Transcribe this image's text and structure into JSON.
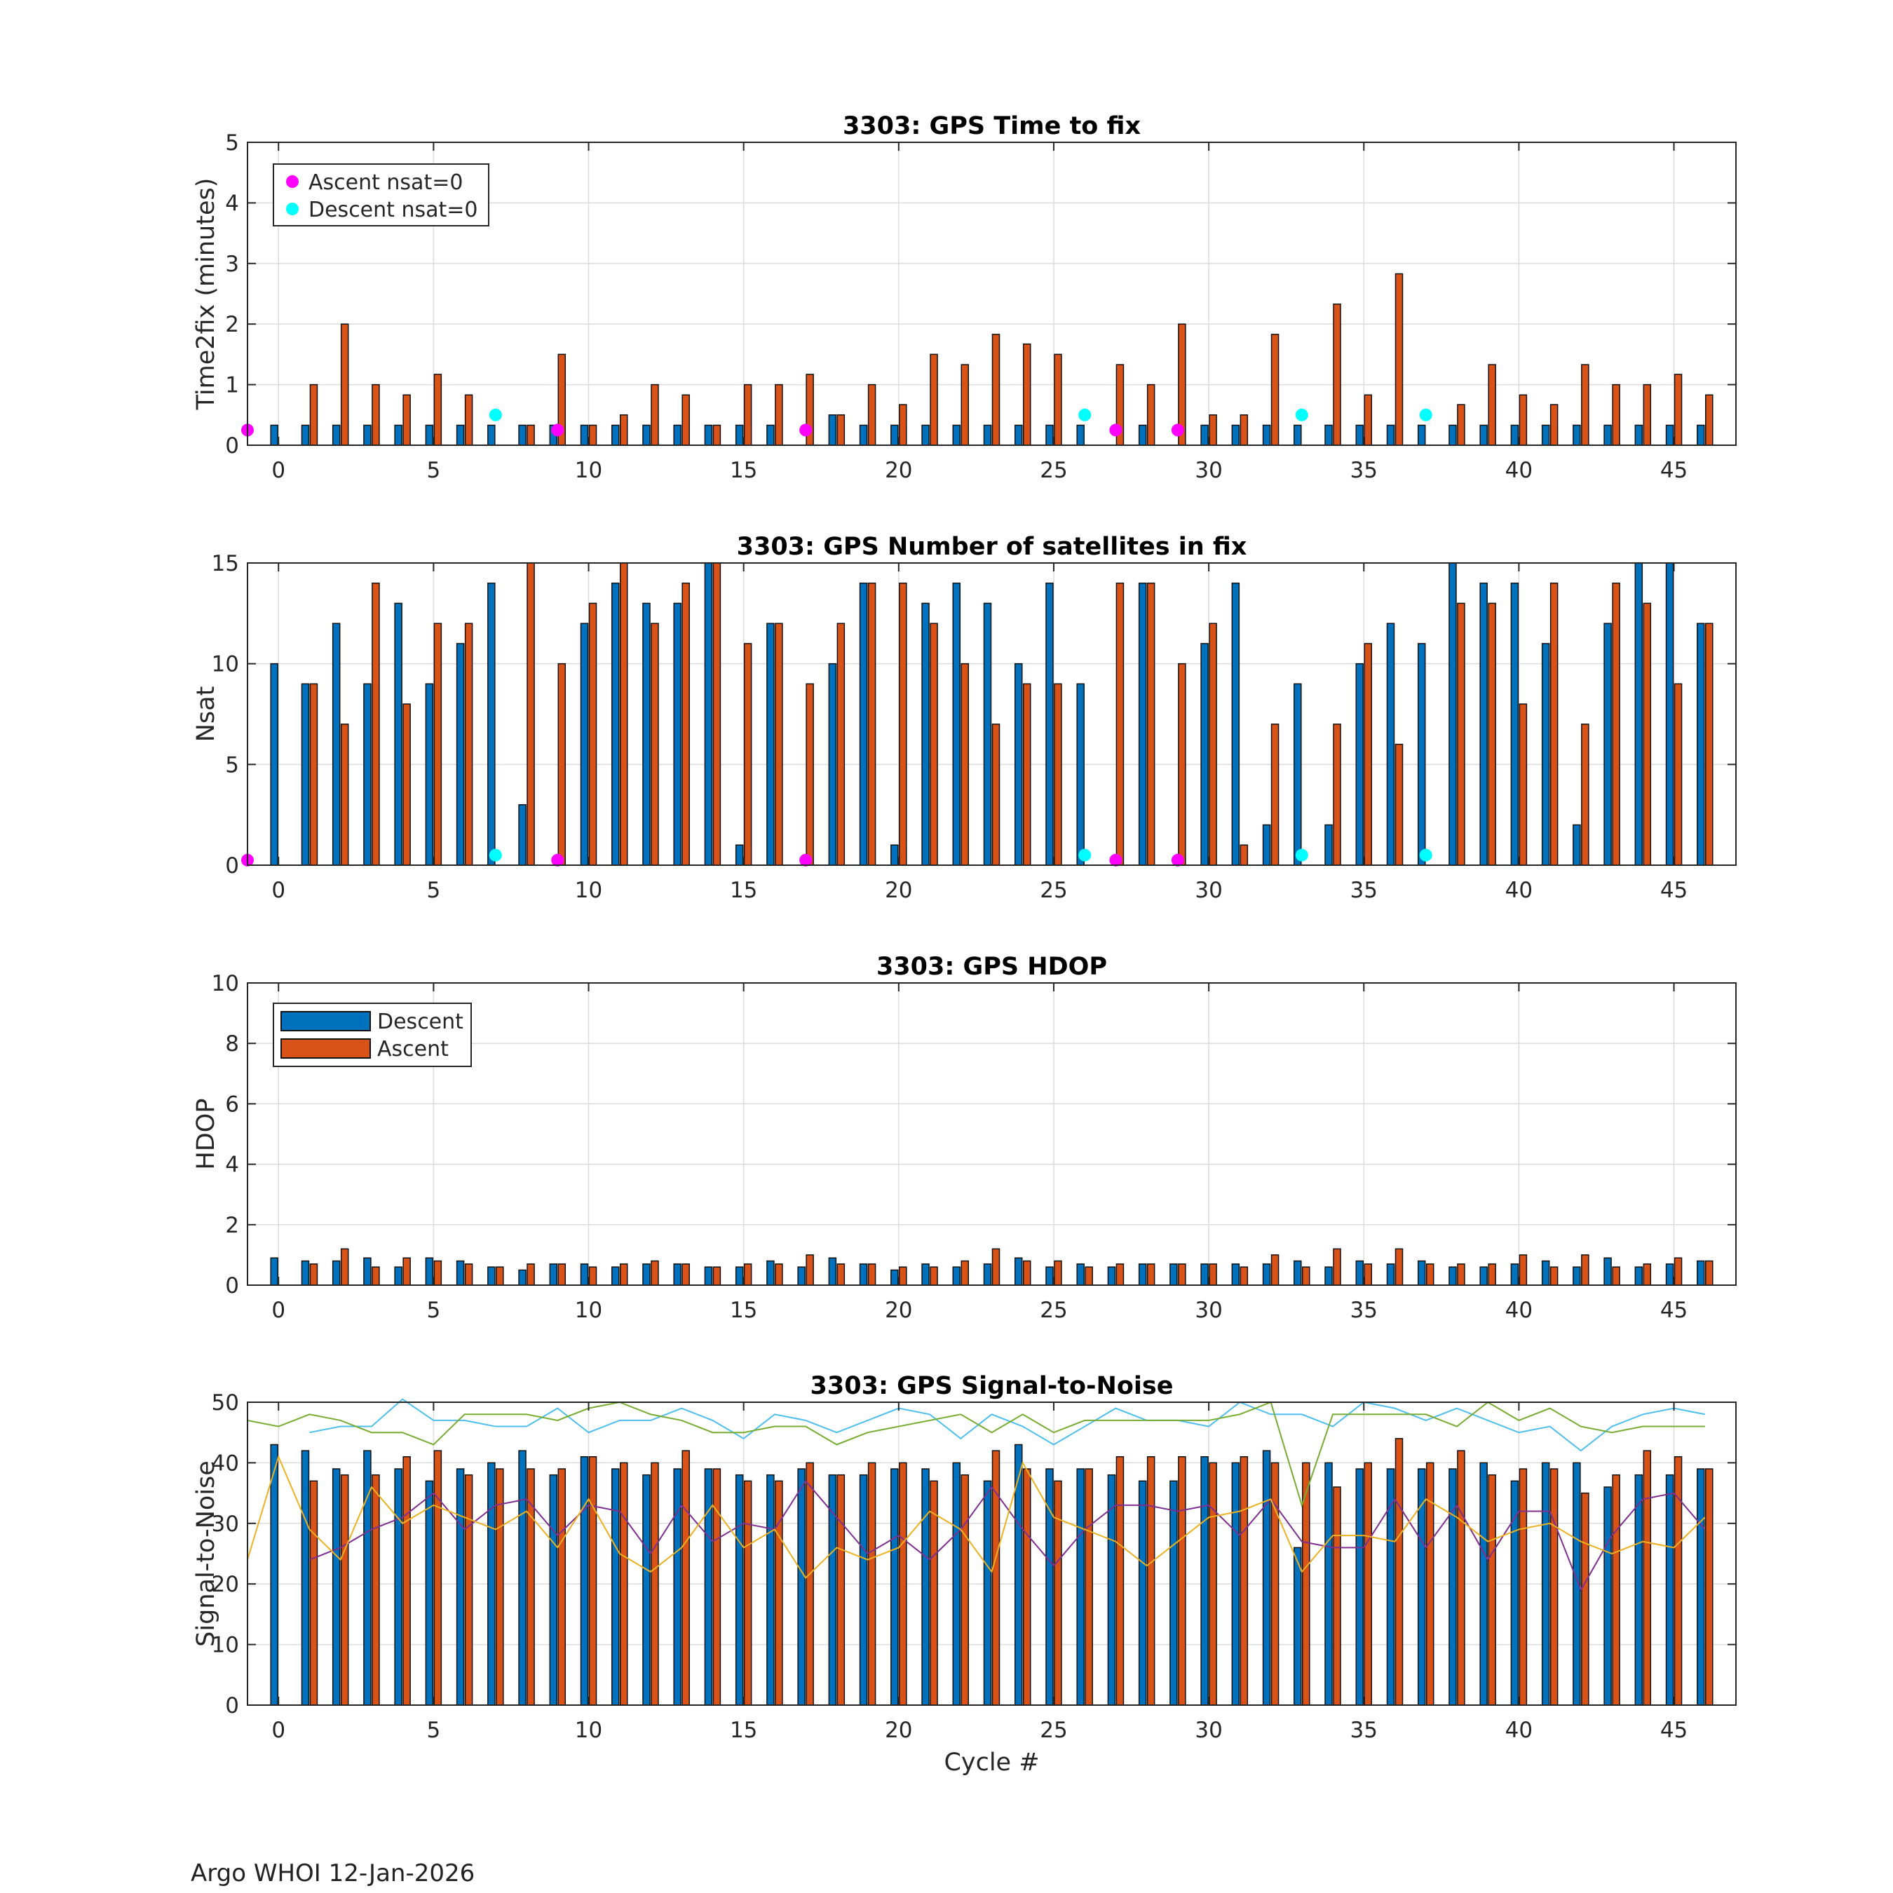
{
  "footer": "Argo WHOI 12-Jan-2026",
  "colors": {
    "descent": "#0072BD",
    "ascent": "#D95319",
    "ascent_nsat0": "#FF00FF",
    "descent_nsat0": "#00FFFF",
    "grid": "#dcdcdc",
    "axis": "#262626",
    "snr_cyan": "#4DBEEE",
    "snr_green": "#77AC30",
    "snr_purple": "#7E2F8E",
    "snr_yellow": "#EDB120"
  },
  "chart_data": [
    {
      "id": "time2fix",
      "type": "bar",
      "title": "3303: GPS Time to fix",
      "xlabel": "",
      "ylabel": "Time2fix (minutes)",
      "xlim": [
        -1,
        47
      ],
      "ylim": [
        0,
        5
      ],
      "xticks": [
        0,
        5,
        10,
        15,
        20,
        25,
        30,
        35,
        40,
        45
      ],
      "yticks": [
        0,
        1,
        2,
        3,
        4,
        5
      ],
      "grid": true,
      "legend": {
        "placement": "top-left",
        "entries": [
          "Ascent nsat=0",
          "Descent nsat=0"
        ]
      },
      "x": [
        0,
        1,
        2,
        3,
        4,
        5,
        6,
        7,
        8,
        9,
        10,
        11,
        12,
        13,
        14,
        15,
        16,
        17,
        18,
        19,
        20,
        21,
        22,
        23,
        24,
        25,
        26,
        27,
        28,
        29,
        30,
        31,
        32,
        33,
        34,
        35,
        36,
        37,
        38,
        39,
        40,
        41,
        42,
        43,
        44,
        45,
        46
      ],
      "series": [
        {
          "name": "Descent",
          "values": [
            0.33,
            0.33,
            0.33,
            0.33,
            0.33,
            0.33,
            0.33,
            0.33,
            0.33,
            0.33,
            0.33,
            0.33,
            0.33,
            0.33,
            0.33,
            0.33,
            0.33,
            null,
            0.5,
            0.33,
            0.33,
            0.33,
            0.33,
            0.33,
            0.33,
            0.33,
            0.33,
            null,
            0.33,
            null,
            0.33,
            0.33,
            0.33,
            0.33,
            0.33,
            0.33,
            0.33,
            0.33,
            0.33,
            0.33,
            0.33,
            0.33,
            0.33,
            0.33,
            0.33,
            0.33,
            0.33
          ]
        },
        {
          "name": "Ascent",
          "values": [
            null,
            1.0,
            2.0,
            1.0,
            0.83,
            1.17,
            0.83,
            null,
            0.33,
            1.5,
            0.33,
            0.5,
            1.0,
            0.83,
            0.33,
            1.0,
            1.0,
            1.17,
            0.5,
            1.0,
            0.67,
            1.5,
            1.33,
            1.83,
            1.67,
            1.5,
            null,
            1.33,
            1.0,
            2.0,
            0.5,
            0.5,
            1.83,
            null,
            2.33,
            0.83,
            2.83,
            null,
            0.67,
            1.33,
            0.83,
            0.67,
            1.33,
            1.0,
            1.0,
            1.17,
            0.83
          ]
        }
      ],
      "markers": {
        "ascent_nsat0": {
          "name": "Ascent nsat=0",
          "x": [
            -1,
            9,
            17,
            27,
            29
          ],
          "y": 0.25
        },
        "descent_nsat0": {
          "name": "Descent nsat=0",
          "x": [
            7,
            26,
            33,
            37
          ],
          "y": 0.5
        }
      }
    },
    {
      "id": "nsat",
      "type": "bar",
      "title": "3303: GPS Number of satellites in fix",
      "xlabel": "",
      "ylabel": "Nsat",
      "xlim": [
        -1,
        47
      ],
      "ylim": [
        0,
        15
      ],
      "xticks": [
        0,
        5,
        10,
        15,
        20,
        25,
        30,
        35,
        40,
        45
      ],
      "yticks": [
        0,
        5,
        10,
        15
      ],
      "grid": true,
      "x": [
        0,
        1,
        2,
        3,
        4,
        5,
        6,
        7,
        8,
        9,
        10,
        11,
        12,
        13,
        14,
        15,
        16,
        17,
        18,
        19,
        20,
        21,
        22,
        23,
        24,
        25,
        26,
        27,
        28,
        29,
        30,
        31,
        32,
        33,
        34,
        35,
        36,
        37,
        38,
        39,
        40,
        41,
        42,
        43,
        44,
        45,
        46
      ],
      "series": [
        {
          "name": "Descent",
          "values": [
            10,
            9,
            12,
            9,
            13,
            9,
            11,
            14,
            3,
            null,
            12,
            14,
            13,
            13,
            15,
            1,
            12,
            null,
            10,
            14,
            1,
            13,
            14,
            13,
            10,
            14,
            9,
            null,
            14,
            null,
            11,
            14,
            2,
            9,
            2,
            10,
            12,
            11,
            15,
            14,
            14,
            11,
            2,
            12,
            15,
            15,
            12
          ]
        },
        {
          "name": "Ascent",
          "values": [
            null,
            9,
            7,
            14,
            8,
            12,
            12,
            null,
            15,
            10,
            13,
            15,
            12,
            14,
            15,
            11,
            12,
            9,
            12,
            14,
            14,
            12,
            10,
            7,
            9,
            9,
            null,
            14,
            14,
            10,
            12,
            1,
            7,
            null,
            7,
            11,
            6,
            null,
            13,
            13,
            8,
            14,
            7,
            14,
            13,
            9,
            12
          ]
        }
      ],
      "markers": {
        "ascent_nsat0": {
          "name": "Ascent nsat=0",
          "x": [
            -1,
            9,
            17,
            27,
            29
          ],
          "y": 0.25
        },
        "descent_nsat0": {
          "name": "Descent nsat=0",
          "x": [
            7,
            26,
            33,
            37
          ],
          "y": 0.5
        }
      }
    },
    {
      "id": "hdop",
      "type": "bar",
      "title": "3303: GPS HDOP",
      "xlabel": "",
      "ylabel": "HDOP",
      "xlim": [
        -1,
        47
      ],
      "ylim": [
        0,
        10
      ],
      "xticks": [
        0,
        5,
        10,
        15,
        20,
        25,
        30,
        35,
        40,
        45
      ],
      "yticks": [
        0,
        2,
        4,
        6,
        8,
        10
      ],
      "grid": true,
      "legend": {
        "placement": "top-left",
        "entries": [
          "Descent",
          "Ascent"
        ]
      },
      "x": [
        0,
        1,
        2,
        3,
        4,
        5,
        6,
        7,
        8,
        9,
        10,
        11,
        12,
        13,
        14,
        15,
        16,
        17,
        18,
        19,
        20,
        21,
        22,
        23,
        24,
        25,
        26,
        27,
        28,
        29,
        30,
        31,
        32,
        33,
        34,
        35,
        36,
        37,
        38,
        39,
        40,
        41,
        42,
        43,
        44,
        45,
        46
      ],
      "series": [
        {
          "name": "Descent",
          "values": [
            0.9,
            0.8,
            0.8,
            0.9,
            0.6,
            0.9,
            0.8,
            0.6,
            0.5,
            0.7,
            0.7,
            0.6,
            0.7,
            0.7,
            0.6,
            0.6,
            0.8,
            0.6,
            0.9,
            0.7,
            0.5,
            0.7,
            0.6,
            0.7,
            0.9,
            0.6,
            0.7,
            0.6,
            0.7,
            0.7,
            0.7,
            0.7,
            0.7,
            0.8,
            0.6,
            0.8,
            0.7,
            0.8,
            0.6,
            0.6,
            0.7,
            0.8,
            0.6,
            0.9,
            0.6,
            0.7,
            0.8
          ]
        },
        {
          "name": "Ascent",
          "values": [
            null,
            0.7,
            1.2,
            0.6,
            0.9,
            0.8,
            0.7,
            0.6,
            0.7,
            0.7,
            0.6,
            0.7,
            0.8,
            0.7,
            0.6,
            0.7,
            0.7,
            1.0,
            0.7,
            0.7,
            0.6,
            0.6,
            0.8,
            1.2,
            0.8,
            0.8,
            0.6,
            0.7,
            0.7,
            0.7,
            0.7,
            0.6,
            1.0,
            0.6,
            1.2,
            0.7,
            1.2,
            0.7,
            0.7,
            0.7,
            1.0,
            0.6,
            1.0,
            0.6,
            0.7,
            0.9,
            0.8
          ]
        }
      ]
    },
    {
      "id": "snr",
      "type": "bar",
      "title": "3303: GPS Signal-to-Noise",
      "xlabel": "Cycle #",
      "ylabel": "Signal-to-Noise",
      "xlim": [
        -1,
        47
      ],
      "ylim": [
        0,
        50
      ],
      "xticks": [
        0,
        5,
        10,
        15,
        20,
        25,
        30,
        35,
        40,
        45
      ],
      "yticks": [
        0,
        10,
        20,
        30,
        40,
        50
      ],
      "grid": true,
      "x": [
        0,
        1,
        2,
        3,
        4,
        5,
        6,
        7,
        8,
        9,
        10,
        11,
        12,
        13,
        14,
        15,
        16,
        17,
        18,
        19,
        20,
        21,
        22,
        23,
        24,
        25,
        26,
        27,
        28,
        29,
        30,
        31,
        32,
        33,
        34,
        35,
        36,
        37,
        38,
        39,
        40,
        41,
        42,
        43,
        44,
        45,
        46
      ],
      "series": [
        {
          "name": "Descent",
          "values": [
            43,
            42,
            39,
            42,
            39,
            37,
            39,
            40,
            42,
            38,
            41,
            39,
            38,
            39,
            39,
            38,
            38,
            39,
            38,
            38,
            39,
            39,
            40,
            37,
            43,
            39,
            39,
            38,
            37,
            37,
            41,
            40,
            42,
            26,
            40,
            39,
            39,
            39,
            39,
            40,
            37,
            40,
            40,
            36,
            38,
            38,
            39
          ]
        },
        {
          "name": "Ascent",
          "values": [
            null,
            37,
            38,
            38,
            41,
            42,
            38,
            39,
            39,
            39,
            41,
            40,
            40,
            42,
            39,
            37,
            37,
            40,
            38,
            40,
            40,
            37,
            38,
            42,
            39,
            37,
            39,
            41,
            41,
            41,
            40,
            41,
            40,
            40,
            36,
            40,
            44,
            40,
            42,
            38,
            39,
            39,
            35,
            38,
            42,
            41,
            39
          ]
        }
      ],
      "lines": [
        {
          "color": "snr_cyan",
          "x": [
            1,
            2,
            3,
            4,
            5,
            6,
            7,
            8,
            9,
            10,
            11,
            12,
            13,
            14,
            15,
            16,
            17,
            18,
            19,
            20,
            21,
            22,
            23,
            24,
            25,
            26,
            27,
            28,
            29,
            30,
            31,
            32,
            33,
            34,
            35,
            36,
            37,
            38,
            39,
            40,
            41,
            42,
            43,
            44,
            45,
            46
          ],
          "values": [
            45,
            46,
            46,
            51,
            47,
            47,
            46,
            46,
            49,
            45,
            47,
            47,
            49,
            47,
            44,
            48,
            47,
            45,
            47,
            49,
            48,
            44,
            48,
            46,
            43,
            46,
            49,
            47,
            47,
            46,
            50,
            48,
            48,
            46,
            50,
            49,
            47,
            49,
            47,
            45,
            46,
            42,
            46,
            48,
            49,
            48
          ]
        },
        {
          "color": "snr_green",
          "x": [
            -1,
            0,
            1,
            2,
            3,
            4,
            5,
            6,
            7,
            8,
            9,
            10,
            11,
            12,
            13,
            14,
            15,
            16,
            17,
            18,
            19,
            20,
            21,
            22,
            23,
            24,
            25,
            26,
            27,
            28,
            29,
            30,
            31,
            32,
            33,
            34,
            35,
            36,
            37,
            38,
            39,
            40,
            41,
            42,
            43,
            44,
            45,
            46
          ],
          "values": [
            47,
            46,
            48,
            47,
            45,
            45,
            43,
            48,
            48,
            48,
            47,
            49,
            50,
            48,
            47,
            45,
            45,
            46,
            46,
            43,
            45,
            46,
            47,
            48,
            45,
            48,
            45,
            47,
            47,
            47,
            47,
            47,
            48,
            50,
            33,
            48,
            48,
            48,
            48,
            46,
            50,
            47,
            49,
            46,
            45,
            46,
            46,
            46
          ]
        },
        {
          "color": "snr_purple",
          "x": [
            1,
            2,
            3,
            4,
            5,
            6,
            7,
            8,
            9,
            10,
            11,
            12,
            13,
            14,
            15,
            16,
            17,
            18,
            19,
            20,
            21,
            22,
            23,
            24,
            25,
            26,
            27,
            28,
            29,
            30,
            31,
            32,
            33,
            34,
            35,
            36,
            37,
            38,
            39,
            40,
            41,
            42,
            43,
            44,
            45,
            46
          ],
          "values": [
            24,
            26,
            29,
            31,
            35,
            29,
            33,
            34,
            28,
            33,
            32,
            25,
            33,
            27,
            30,
            29,
            37,
            31,
            25,
            28,
            24,
            29,
            36,
            29,
            23,
            29,
            33,
            33,
            32,
            33,
            28,
            34,
            27,
            26,
            26,
            34,
            26,
            33,
            24,
            32,
            32,
            19,
            28,
            34,
            35,
            29
          ]
        },
        {
          "color": "snr_yellow",
          "x": [
            -1,
            0,
            1,
            2,
            3,
            4,
            5,
            6,
            7,
            8,
            9,
            10,
            11,
            12,
            13,
            14,
            15,
            16,
            17,
            18,
            19,
            20,
            21,
            22,
            23,
            24,
            25,
            26,
            27,
            28,
            29,
            30,
            31,
            32,
            33,
            34,
            35,
            36,
            37,
            38,
            39,
            40,
            41,
            42,
            43,
            44,
            45,
            46
          ],
          "values": [
            24,
            41,
            29,
            24,
            36,
            30,
            33,
            31,
            29,
            32,
            26,
            34,
            25,
            22,
            26,
            33,
            26,
            29,
            21,
            26,
            24,
            26,
            32,
            29,
            22,
            40,
            31,
            29,
            27,
            23,
            27,
            31,
            32,
            34,
            22,
            28,
            28,
            27,
            34,
            31,
            27,
            29,
            30,
            27,
            25,
            27,
            26,
            31
          ]
        }
      ]
    }
  ]
}
